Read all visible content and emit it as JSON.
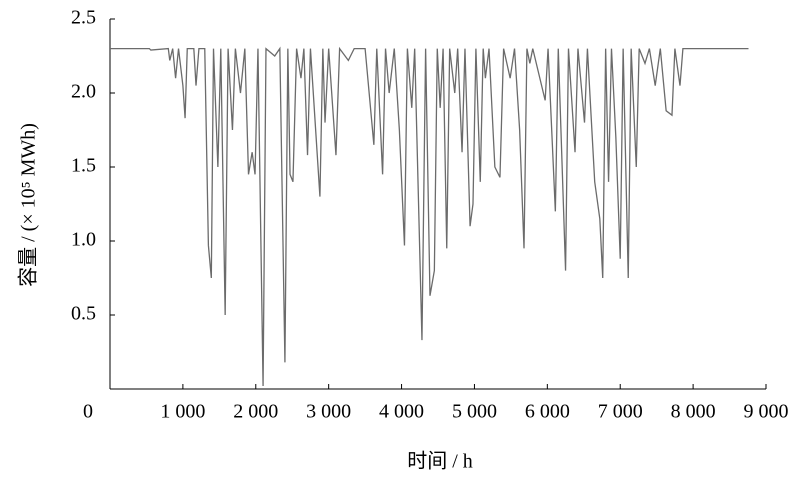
{
  "chart_data": {
    "type": "line",
    "xlabel": "时间 / h",
    "ylabel": "容量 / (× 10⁵ MWh)",
    "xlim": [
      0,
      9000
    ],
    "ylim": [
      0,
      2.5
    ],
    "xticks": [
      0,
      {
        "value": 1000,
        "label": "1 000"
      },
      {
        "value": 2000,
        "label": "2 000"
      },
      {
        "value": 3000,
        "label": "3 000"
      },
      {
        "value": 4000,
        "label": "4 000"
      },
      {
        "value": 5000,
        "label": "5 000"
      },
      {
        "value": 6000,
        "label": "6 000"
      },
      {
        "value": 7000,
        "label": "7 000"
      },
      {
        "value": 8000,
        "label": "8 000"
      },
      {
        "value": 9000,
        "label": "9 000"
      }
    ],
    "yticks": [
      0.5,
      {
        "value": 1,
        "label": "1.0"
      },
      1.5,
      {
        "value": 2,
        "label": "2.0"
      },
      2.5
    ],
    "x": [
      0,
      540,
      560,
      800,
      820,
      860,
      900,
      940,
      1000,
      1030,
      1060,
      1150,
      1180,
      1220,
      1300,
      1350,
      1390,
      1420,
      1480,
      1520,
      1580,
      1620,
      1680,
      1720,
      1790,
      1850,
      1900,
      1950,
      1990,
      2030,
      2100,
      2140,
      2260,
      2330,
      2400,
      2440,
      2470,
      2510,
      2560,
      2620,
      2660,
      2710,
      2750,
      2880,
      2920,
      2950,
      3000,
      3100,
      3150,
      3270,
      3350,
      3500,
      3620,
      3660,
      3740,
      3780,
      3830,
      3900,
      3970,
      4040,
      4080,
      4140,
      4180,
      4280,
      4330,
      4390,
      4450,
      4490,
      4530,
      4570,
      4620,
      4660,
      4730,
      4770,
      4830,
      4870,
      4940,
      4980,
      5020,
      5080,
      5120,
      5150,
      5200,
      5280,
      5350,
      5400,
      5490,
      5550,
      5620,
      5680,
      5720,
      5760,
      5800,
      5970,
      6010,
      6110,
      6150,
      6250,
      6290,
      6380,
      6420,
      6510,
      6550,
      6650,
      6720,
      6760,
      6800,
      6840,
      6880,
      6940,
      7000,
      7040,
      7110,
      7150,
      7220,
      7260,
      7340,
      7400,
      7480,
      7550,
      7630,
      7710,
      7750,
      7820,
      7860,
      8760
    ],
    "series": [
      {
        "color": "#6b6b6b",
        "values": [
          2.3,
          2.3,
          2.29,
          2.3,
          2.22,
          2.3,
          2.1,
          2.3,
          2.05,
          1.83,
          2.3,
          2.3,
          2.05,
          2.3,
          2.3,
          0.97,
          0.75,
          2.3,
          1.5,
          2.3,
          0.5,
          2.3,
          1.75,
          2.3,
          2.0,
          2.3,
          1.45,
          1.6,
          1.45,
          2.3,
          0.02,
          2.3,
          2.25,
          2.3,
          0.18,
          2.3,
          1.45,
          1.4,
          2.3,
          2.1,
          2.3,
          1.58,
          2.3,
          1.3,
          2.3,
          1.8,
          2.3,
          1.58,
          2.3,
          2.22,
          2.3,
          2.3,
          1.65,
          2.3,
          1.45,
          2.3,
          2.0,
          2.3,
          1.75,
          0.97,
          2.3,
          1.9,
          2.3,
          0.33,
          2.3,
          0.63,
          0.8,
          2.3,
          1.9,
          2.3,
          0.95,
          2.3,
          2.0,
          2.3,
          1.6,
          2.3,
          1.1,
          1.25,
          2.3,
          1.4,
          2.3,
          2.1,
          2.3,
          1.5,
          1.43,
          2.3,
          2.1,
          2.3,
          1.75,
          0.95,
          2.3,
          2.2,
          2.3,
          1.95,
          2.3,
          1.2,
          2.3,
          0.8,
          2.3,
          1.6,
          2.3,
          1.8,
          2.3,
          1.4,
          1.15,
          0.75,
          2.3,
          1.4,
          2.3,
          1.7,
          0.88,
          2.3,
          0.75,
          2.3,
          1.5,
          2.3,
          2.2,
          2.3,
          2.05,
          2.3,
          1.88,
          1.85,
          2.3,
          2.05,
          2.3,
          2.3
        ]
      }
    ]
  }
}
